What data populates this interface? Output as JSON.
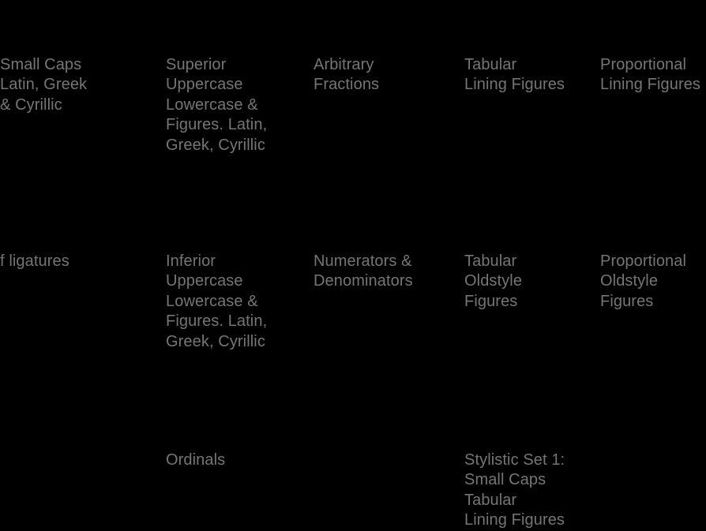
{
  "page": {
    "background_color": "#000000",
    "text_color": "#757575",
    "description": "OpenType feature grid of a type specimen"
  },
  "labels": [
    {
      "name": "small-caps",
      "text": "Small Caps\nLatin, Greek\n& Cyrillic"
    },
    {
      "name": "superior",
      "text": "Superior\nUppercase\nLowercase &\nFigures. Latin,\nGreek, Cyrillic"
    },
    {
      "name": "arbitrary-fractions",
      "text": "Arbitrary\nFractions"
    },
    {
      "name": "tabular-lining-figures",
      "text": "Tabular\nLining Figures"
    },
    {
      "name": "proportional-lining-figures",
      "text": "Proportional\nLining Figures"
    },
    {
      "name": "f-ligatures",
      "text": "f ligatures"
    },
    {
      "name": "inferior",
      "text": "Inferior\nUppercase\nLowercase &\nFigures. Latin,\nGreek, Cyrillic"
    },
    {
      "name": "numerators-denominators",
      "text": "Numerators &\nDenominators"
    },
    {
      "name": "tabular-oldstyle-figures",
      "text": "Tabular\nOldstyle\nFigures"
    },
    {
      "name": "proportional-oldstyle-figures",
      "text": "Proportional\nOldstyle\nFigures"
    },
    {
      "name": "ordinals",
      "text": "Ordinals"
    },
    {
      "name": "stylistic-set-1",
      "text": "Stylistic Set 1:\nSmall Caps\nTabular\nLining Figures"
    }
  ]
}
